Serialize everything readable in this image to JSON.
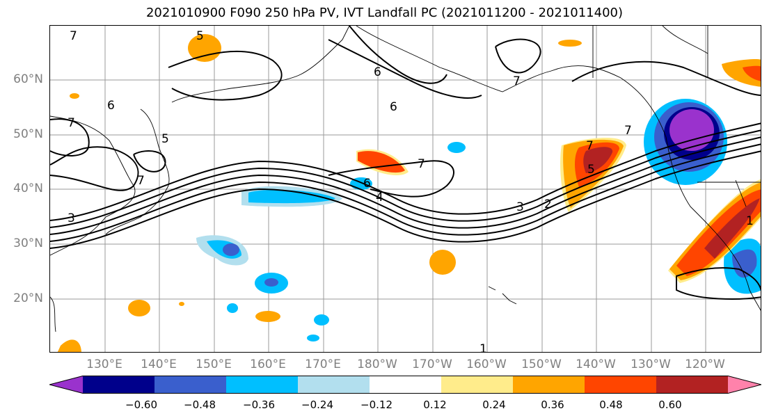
{
  "title": "2021010900 F090 250 hPa PV, IVT Landfall PC (2021011200 - 2021011400)",
  "lat_labels": [
    "60°N",
    "50°N",
    "40°N",
    "30°N",
    "20°N"
  ],
  "lon_labels": [
    "130°E",
    "140°E",
    "150°E",
    "160°E",
    "170°E",
    "180°W",
    "170°W",
    "160°W",
    "150°W",
    "140°W",
    "130°W",
    "120°W"
  ],
  "contour_labels": [
    "7",
    "5",
    "6",
    "7",
    "5",
    "6",
    "7",
    "3",
    "6",
    "4",
    "7",
    "3",
    "2",
    "7",
    "5",
    "6",
    "1",
    "1",
    "7",
    "7"
  ],
  "colorbar": {
    "ticks": [
      "−0.60",
      "−0.48",
      "−0.36",
      "−0.24",
      "−0.12",
      "0.12",
      "0.24",
      "0.36",
      "0.48",
      "0.60"
    ],
    "colors": [
      "#9a32cd",
      "#00008b",
      "#3a5fcd",
      "#00bfff",
      "#b2dfee",
      "#ffffff",
      "#ffec8b",
      "#ffa500",
      "#ff4500",
      "#b22222",
      "#ff82ab"
    ]
  }
}
